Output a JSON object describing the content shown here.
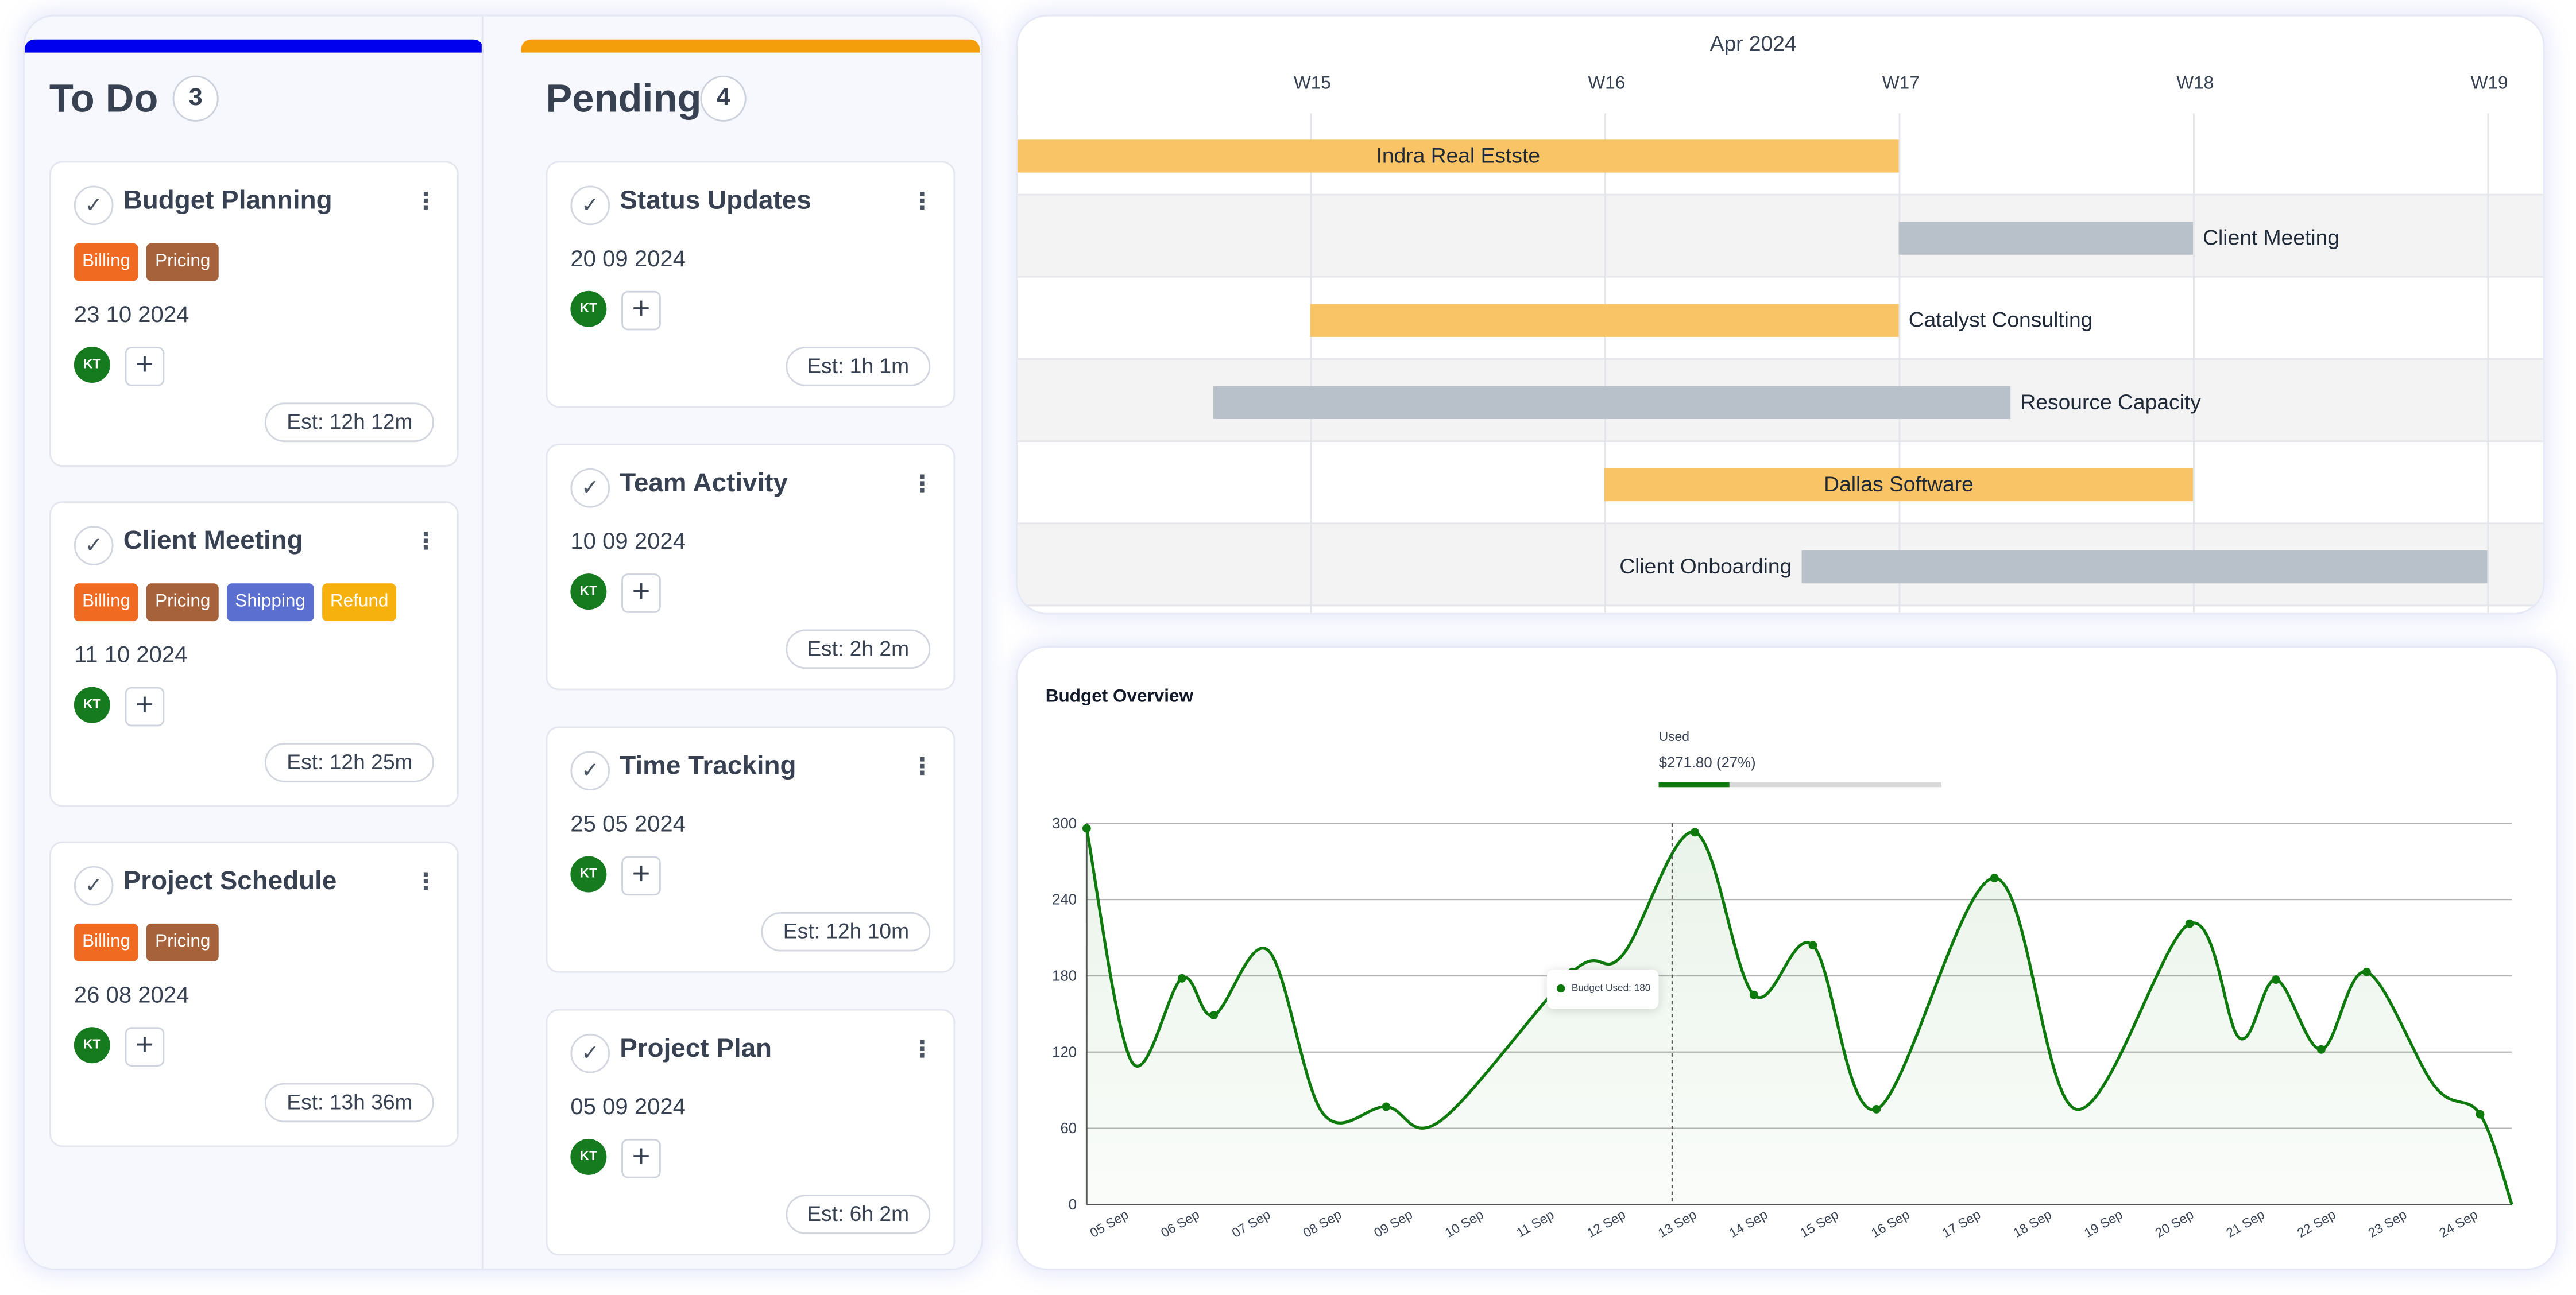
{
  "colors": {
    "todo_bar": "#0000ee",
    "pending_bar": "#f59e0b",
    "gantt_gold": "#f8c465",
    "gantt_gray": "#b8c0ca",
    "line_green": "#0e7a0d",
    "avatar_green": "#167a1e"
  },
  "kanban": {
    "columns": [
      {
        "title": "To Do",
        "count": "3",
        "cards": [
          {
            "title": "Budget Planning",
            "tags": [
              {
                "label": "Billing",
                "color": "#f06a22"
              },
              {
                "label": "Pricing",
                "color": "#a5623b"
              }
            ],
            "date": "23 10 2024",
            "avatar": "KT",
            "estimate": "Est: 12h 12m"
          },
          {
            "title": "Client Meeting",
            "tags": [
              {
                "label": "Billing",
                "color": "#f06a22"
              },
              {
                "label": "Pricing",
                "color": "#a5623b"
              },
              {
                "label": "Shipping",
                "color": "#5b6fd0"
              },
              {
                "label": "Refund",
                "color": "#f6b10e"
              }
            ],
            "date": "11 10 2024",
            "avatar": "KT",
            "estimate": "Est: 12h 25m"
          },
          {
            "title": "Project Schedule",
            "tags": [
              {
                "label": "Billing",
                "color": "#f06a22"
              },
              {
                "label": "Pricing",
                "color": "#a5623b"
              }
            ],
            "date": "26 08 2024",
            "avatar": "KT",
            "estimate": "Est: 13h 36m"
          }
        ]
      },
      {
        "title": "Pending",
        "count": "4",
        "cards": [
          {
            "title": "Status Updates",
            "tags": [],
            "date": "20 09 2024",
            "avatar": "KT",
            "estimate": "Est: 1h 1m"
          },
          {
            "title": "Team Activity",
            "tags": [],
            "date": "10 09 2024",
            "avatar": "KT",
            "estimate": "Est: 2h 2m"
          },
          {
            "title": "Time Tracking",
            "tags": [],
            "date": "25 05 2024",
            "avatar": "KT",
            "estimate": "Est: 12h 10m"
          },
          {
            "title": "Project Plan",
            "tags": [],
            "date": "05 09 2024",
            "avatar": "KT",
            "estimate": "Est: 6h 2m"
          }
        ]
      }
    ]
  },
  "gantt": {
    "month": "Apr 2024",
    "weeks": [
      "W15",
      "W16",
      "W17",
      "W18",
      "W19"
    ],
    "tasks": [
      {
        "name": "Indra Real Estste",
        "start_week": 14.0,
        "end_week": 17.0,
        "color": "gold",
        "label_position": "inside"
      },
      {
        "name": "Client Meeting",
        "start_week": 17.0,
        "end_week": 18.0,
        "color": "gray",
        "label_position": "right"
      },
      {
        "name": "Catalyst Consulting",
        "start_week": 15.0,
        "end_week": 17.0,
        "color": "gold",
        "label_position": "right"
      },
      {
        "name": "Resource Capacity",
        "start_week": 14.67,
        "end_week": 17.38,
        "color": "gray",
        "label_position": "right"
      },
      {
        "name": "Dallas Software",
        "start_week": 16.0,
        "end_week": 18.0,
        "color": "gold",
        "label_position": "inside"
      },
      {
        "name": "Client Onboarding",
        "start_week": 16.67,
        "end_week": 19.0,
        "color": "gray",
        "label_position": "left"
      }
    ]
  },
  "budget": {
    "title": "Budget Overview",
    "used_label": "Used",
    "used_value": "$271.80 (27%)",
    "used_fraction": 0.27,
    "tooltip": "Budget Used: 180"
  },
  "chart_data": {
    "type": "area",
    "title": "Budget Overview",
    "xlabel": "",
    "ylabel": "",
    "ylim": [
      0,
      300
    ],
    "yticks": [
      0,
      60,
      120,
      180,
      240,
      300
    ],
    "grid": true,
    "xticks": [
      "05 Sep",
      "06 Sep",
      "07 Sep",
      "08 Sep",
      "09 Sep",
      "10 Sep",
      "11 Sep",
      "12 Sep",
      "13 Sep",
      "14 Sep",
      "15 Sep",
      "16 Sep",
      "17 Sep",
      "18 Sep",
      "19 Sep",
      "20 Sep",
      "21 Sep",
      "22 Sep",
      "23 Sep",
      "24 Sep"
    ],
    "series": [
      {
        "name": "Budget Used",
        "points": [
          {
            "x": 4.5,
            "y": 296,
            "marker": true
          },
          {
            "x": 5.0,
            "y": 112,
            "marker": false
          },
          {
            "x": 5.55,
            "y": 178,
            "marker": true
          },
          {
            "x": 5.9,
            "y": 149,
            "marker": true
          },
          {
            "x": 6.5,
            "y": 200,
            "marker": false
          },
          {
            "x": 7.1,
            "y": 72,
            "marker": false
          },
          {
            "x": 7.8,
            "y": 77,
            "marker": true
          },
          {
            "x": 8.4,
            "y": 66,
            "marker": false
          },
          {
            "x": 9.85,
            "y": 183,
            "marker": true
          },
          {
            "x": 10.4,
            "y": 196,
            "marker": false
          },
          {
            "x": 11.2,
            "y": 293,
            "marker": true
          },
          {
            "x": 11.85,
            "y": 165,
            "marker": true
          },
          {
            "x": 12.5,
            "y": 204,
            "marker": true
          },
          {
            "x": 13.2,
            "y": 75,
            "marker": true
          },
          {
            "x": 14.5,
            "y": 257,
            "marker": true
          },
          {
            "x": 15.4,
            "y": 75,
            "marker": false
          },
          {
            "x": 16.65,
            "y": 221,
            "marker": true
          },
          {
            "x": 17.2,
            "y": 131,
            "marker": false
          },
          {
            "x": 17.6,
            "y": 177,
            "marker": true
          },
          {
            "x": 18.1,
            "y": 122,
            "marker": true
          },
          {
            "x": 18.6,
            "y": 183,
            "marker": true
          },
          {
            "x": 19.35,
            "y": 93,
            "marker": false
          },
          {
            "x": 19.85,
            "y": 71,
            "marker": true
          },
          {
            "x": 20.2,
            "y": 0,
            "marker": false
          }
        ]
      }
    ],
    "crosshair_x": 10.95
  }
}
